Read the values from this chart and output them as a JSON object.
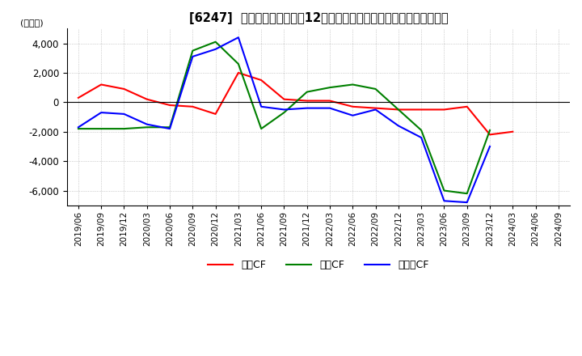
{
  "title": "[6247]  キャッシュフローの12か月移動合計の対前年同期増減額の推移",
  "ylabel": "(百万円)",
  "ylim": [
    -7000,
    5000
  ],
  "yticks": [
    -6000,
    -4000,
    -2000,
    0,
    2000,
    4000
  ],
  "x_labels": [
    "2019/06",
    "2019/09",
    "2019/12",
    "2020/03",
    "2020/06",
    "2020/09",
    "2020/12",
    "2021/03",
    "2021/06",
    "2021/09",
    "2021/12",
    "2022/03",
    "2022/06",
    "2022/09",
    "2022/12",
    "2023/03",
    "2023/06",
    "2023/09",
    "2023/12",
    "2024/03",
    "2024/06",
    "2024/09"
  ],
  "operating_cf": [
    300,
    1200,
    900,
    200,
    -200,
    -300,
    -800,
    2000,
    1500,
    200,
    100,
    100,
    -300,
    -400,
    -500,
    -500,
    -500,
    -300,
    -2200,
    -2000,
    null,
    null
  ],
  "investing_cf": [
    -1800,
    -1800,
    -1800,
    -1700,
    -1700,
    3500,
    4100,
    2600,
    -1800,
    -700,
    700,
    1000,
    1200,
    900,
    -500,
    -1900,
    -6000,
    -6200,
    -1900,
    null,
    null,
    null
  ],
  "free_cf": [
    -1700,
    -700,
    -800,
    -1500,
    -1800,
    3100,
    3600,
    4400,
    -300,
    -500,
    -400,
    -400,
    -900,
    -500,
    -1600,
    -2400,
    -6700,
    -6800,
    -3000,
    null,
    null,
    null
  ],
  "operating_color": "#ff0000",
  "investing_color": "#008000",
  "free_cf_color": "#0000ff",
  "background_color": "#ffffff",
  "grid_color": "#aaaaaa",
  "legend_labels": [
    "営業CF",
    "投資CF",
    "フリーCF"
  ]
}
